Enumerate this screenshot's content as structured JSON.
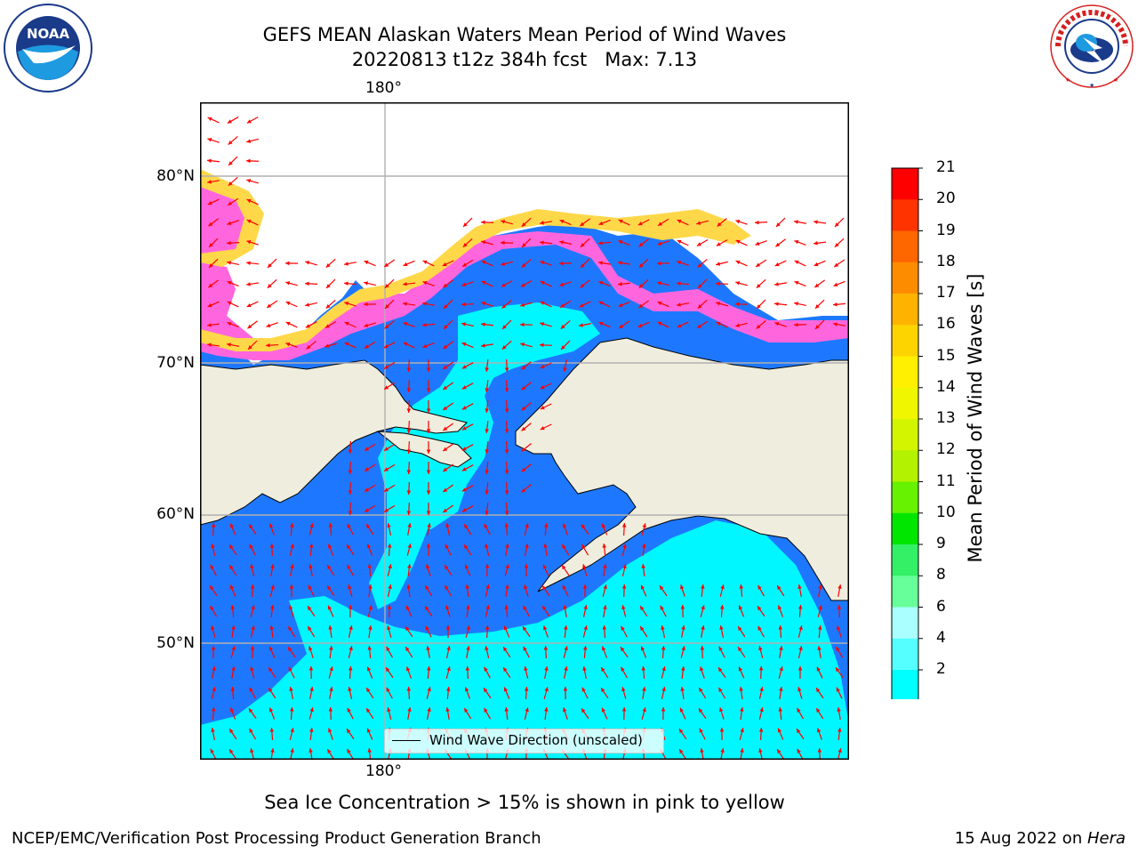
{
  "title": {
    "line1": "GEFS MEAN Alaskan Waters Mean Period of Wind Waves",
    "line2": "20220813 t12z 384h fcst   Max: 7.13"
  },
  "map": {
    "lon_label_top": "180°",
    "lon_label_bottom": "180°",
    "lat_labels": [
      "80°N",
      "70°N",
      "60°N",
      "50°N"
    ],
    "legend_label": "Wind Wave Direction (unscaled)",
    "colors": {
      "land": "#efedde",
      "wave_2_4": "#1e78ff",
      "wave_4_6": "#00f7ff",
      "ice_pink": "#ff66dd",
      "ice_yellow": "#ffe040",
      "arrow": "#ff0000",
      "grid": "#b0b0b0"
    }
  },
  "colorbar": {
    "label": "Mean Period of Wind Waves [s]",
    "ticks": [
      "21",
      "20",
      "19",
      "18",
      "17",
      "16",
      "15",
      "14",
      "13",
      "12",
      "11",
      "10",
      "9",
      "8",
      "6",
      "4",
      "2"
    ],
    "colors": [
      "#fe0000",
      "#fe3300",
      "#fe6600",
      "#fe8c00",
      "#feb300",
      "#fed400",
      "#fef000",
      "#f0f500",
      "#d4f500",
      "#b3f200",
      "#66f200",
      "#00e600",
      "#33f066",
      "#66ff99",
      "#aaffff",
      "#55ffff",
      "#00ffff",
      "#1e78ff"
    ],
    "under_color": "#0000ff"
  },
  "logos": {
    "noaa_text": "NOAA",
    "nws_text": "NATIONAL WEATHER SERVICE"
  },
  "footer": {
    "caption": "Sea Ice Concentration > 15% is shown in pink to yellow",
    "left": "NCEP/EMC/Verification Post Processing Product Generation Branch",
    "right_date": "15 Aug 2022 on ",
    "right_host": "Hera"
  }
}
